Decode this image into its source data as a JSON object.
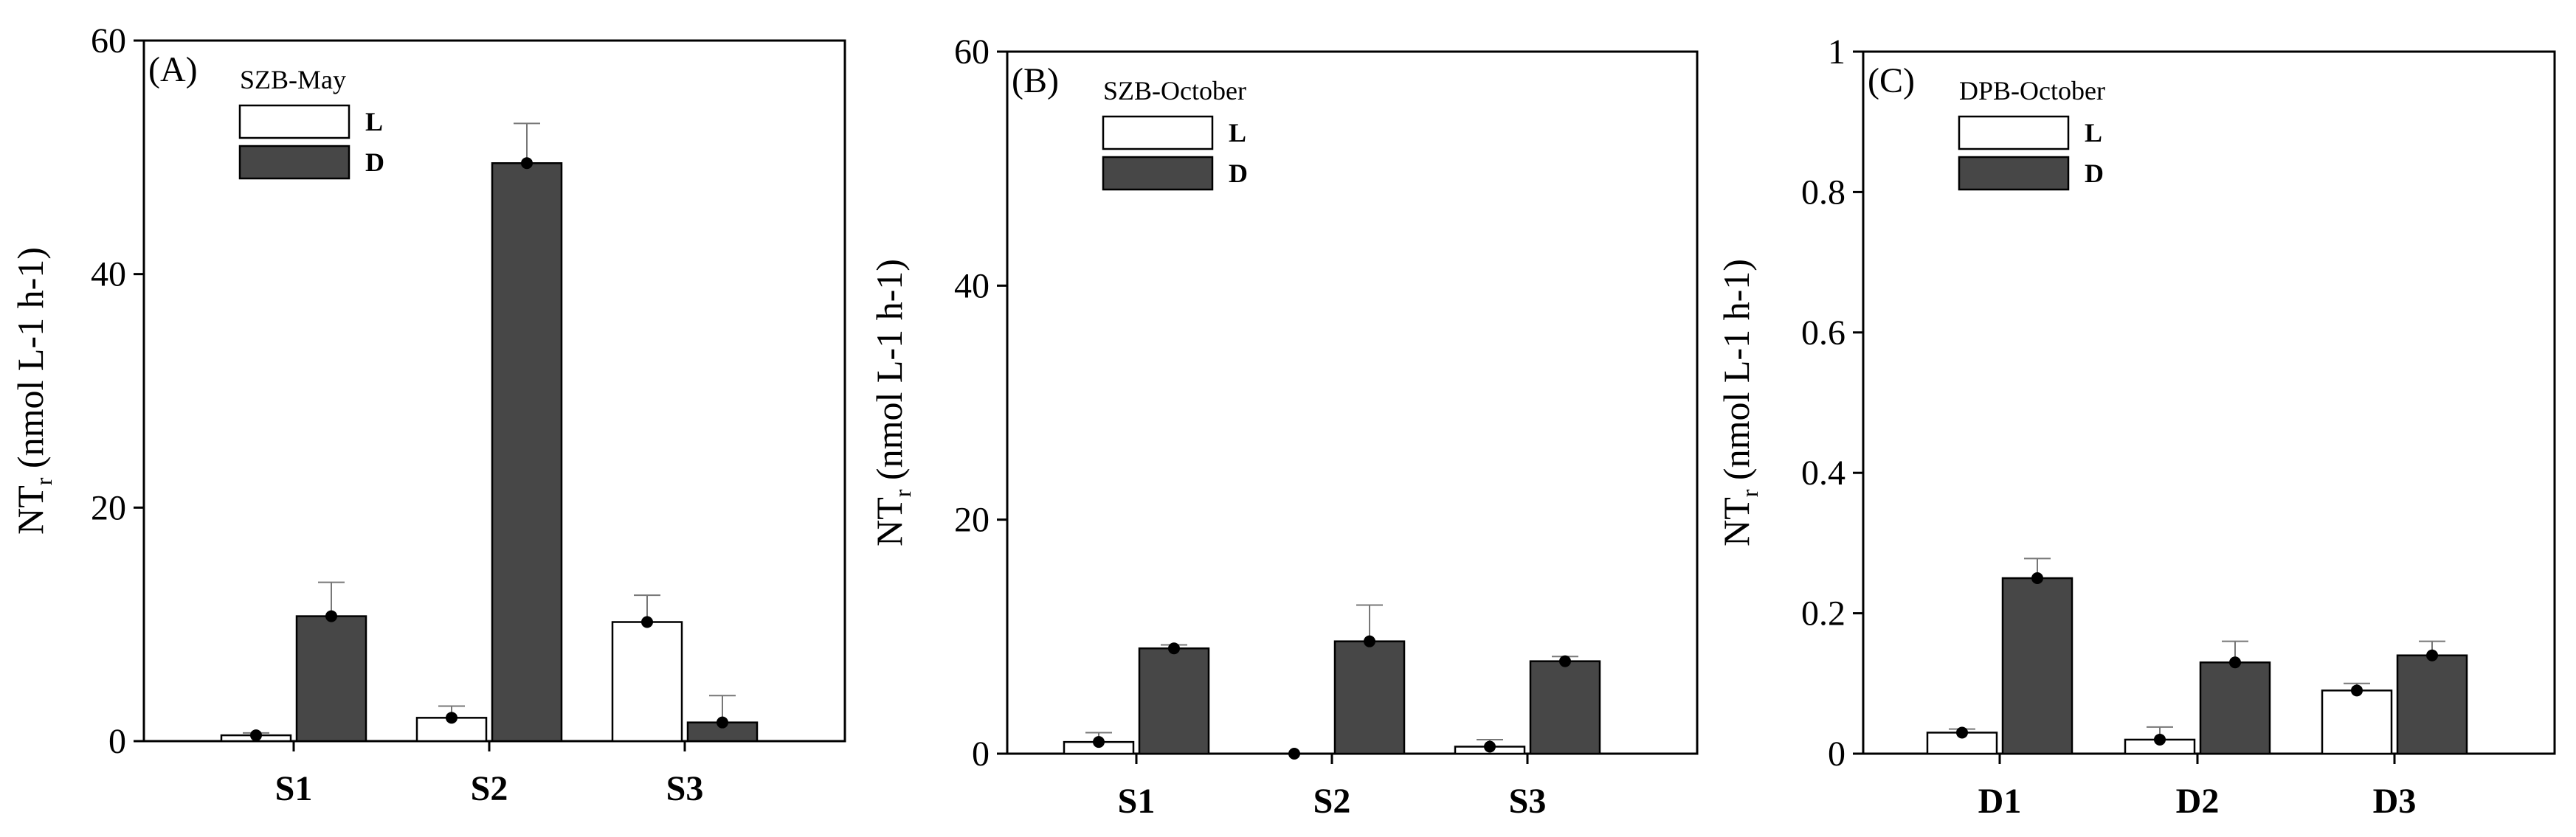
{
  "chart_data": [
    {
      "type": "bar",
      "panel_label": "(A)",
      "legend_title": "SZB-May",
      "ylabel_main": "NT",
      "ylabel_sub": "r",
      "ylabel_rest": " (nmol L-1 h-1)",
      "categories": [
        "S1",
        "S2",
        "S3"
      ],
      "ylim": [
        0,
        60
      ],
      "yticks": [
        "0",
        "20",
        "40",
        "60"
      ],
      "ytick_values": [
        0,
        20,
        40,
        60
      ],
      "series": [
        {
          "name": "L",
          "color": "#ffffff",
          "values": [
            0.5,
            2.0,
            10.2
          ],
          "errors": [
            0.2,
            1.0,
            2.3
          ]
        },
        {
          "name": "D",
          "color": "#474747",
          "values": [
            10.7,
            49.5,
            1.6
          ],
          "errors": [
            2.9,
            3.4,
            2.3
          ]
        }
      ]
    },
    {
      "type": "bar",
      "panel_label": "(B)",
      "legend_title": "SZB-October",
      "ylabel_main": "NT",
      "ylabel_sub": "r",
      "ylabel_rest": " (nmol L-1 h-1)",
      "categories": [
        "S1",
        "S2",
        "S3"
      ],
      "ylim": [
        0,
        60
      ],
      "yticks": [
        "0",
        "20",
        "40",
        "60"
      ],
      "ytick_values": [
        0,
        20,
        40,
        60
      ],
      "series": [
        {
          "name": "L",
          "color": "#ffffff",
          "values": [
            1.0,
            0.0,
            0.6
          ],
          "errors": [
            0.8,
            0.0,
            0.6
          ]
        },
        {
          "name": "D",
          "color": "#474747",
          "values": [
            9.0,
            9.6,
            7.9
          ],
          "errors": [
            0.3,
            3.1,
            0.4
          ]
        }
      ]
    },
    {
      "type": "bar",
      "panel_label": "(C)",
      "legend_title": "DPB-October",
      "ylabel_main": "NT",
      "ylabel_sub": "r",
      "ylabel_rest": " (nmol L-1 h-1)",
      "categories": [
        "D1",
        "D2",
        "D3"
      ],
      "ylim": [
        0,
        1
      ],
      "yticks": [
        "0",
        "0.2",
        "0.4",
        "0.6",
        "0.8",
        "1"
      ],
      "ytick_values": [
        0,
        0.2,
        0.4,
        0.6,
        0.8,
        1.0
      ],
      "series": [
        {
          "name": "L",
          "color": "#ffffff",
          "values": [
            0.03,
            0.02,
            0.09
          ],
          "errors": [
            0.005,
            0.018,
            0.01
          ]
        },
        {
          "name": "D",
          "color": "#474747",
          "values": [
            0.25,
            0.13,
            0.14
          ],
          "errors": [
            0.028,
            0.03,
            0.02
          ]
        }
      ]
    }
  ]
}
